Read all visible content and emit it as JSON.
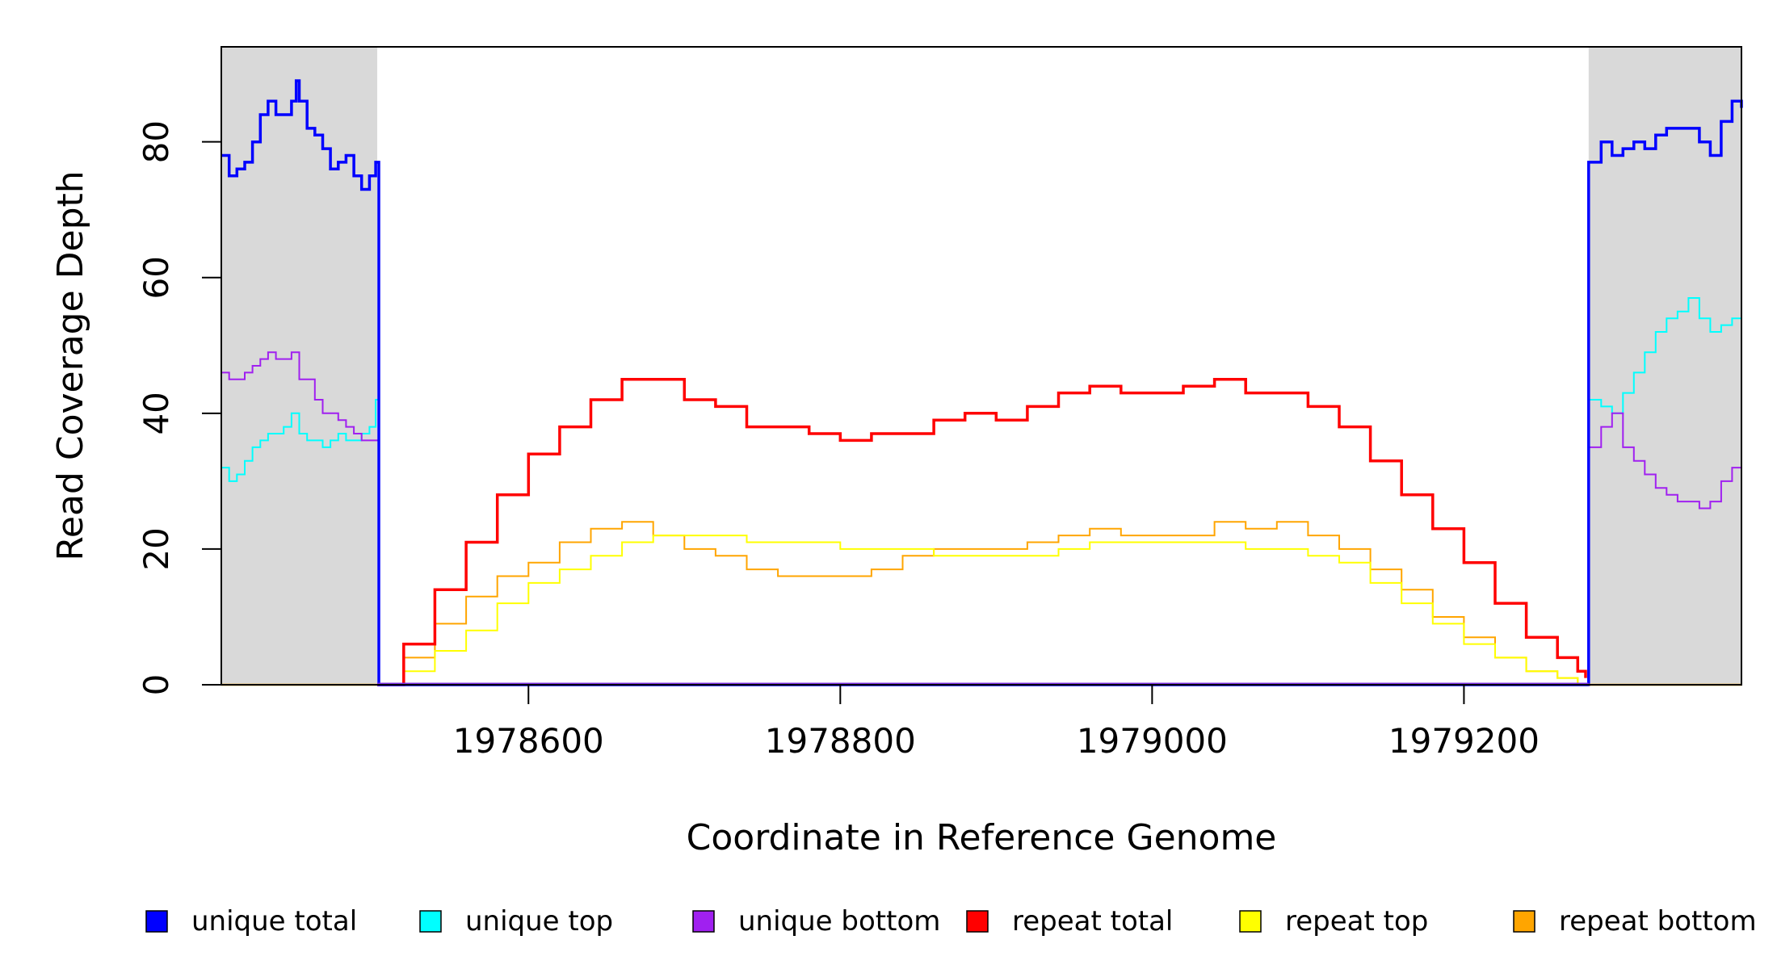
{
  "chart_data": {
    "type": "line",
    "title": "",
    "xlabel": "Coordinate in Reference Genome",
    "ylabel": "Read Coverage Depth",
    "xlim": [
      1978403,
      1979378
    ],
    "ylim": [
      0,
      94
    ],
    "x_ticks": [
      1978600,
      1978800,
      1979000,
      1979200
    ],
    "x_tick_labels": [
      "1978600",
      "1978800",
      "1979000",
      "1979200"
    ],
    "y_ticks": [
      0,
      20,
      40,
      60,
      80
    ],
    "y_tick_labels": [
      "0",
      "20",
      "40",
      "60",
      "80"
    ],
    "grid": false,
    "legend_position": "bottom",
    "shaded_regions": [
      {
        "from": 1978403,
        "to": 1978503,
        "color": "#d9d9d9"
      },
      {
        "from": 1979280,
        "to": 1979378,
        "color": "#d9d9d9"
      }
    ],
    "series": [
      {
        "name": "unique total",
        "color": "#0000ff",
        "x": [
          1978403,
          1978408,
          1978413,
          1978418,
          1978423,
          1978428,
          1978433,
          1978438,
          1978443,
          1978448,
          1978451,
          1978453,
          1978458,
          1978463,
          1978468,
          1978473,
          1978478,
          1978483,
          1978488,
          1978493,
          1978498,
          1978502,
          1978503,
          1978504,
          1979279,
          1979280,
          1979281,
          1979288,
          1979295,
          1979302,
          1979309,
          1979316,
          1979323,
          1979330,
          1979337,
          1979344,
          1979351,
          1979358,
          1979365,
          1979372,
          1979378
        ],
        "y": [
          78,
          75,
          76,
          77,
          80,
          84,
          86,
          84,
          84,
          86,
          89,
          86,
          82,
          81,
          79,
          76,
          77,
          78,
          75,
          73,
          75,
          77,
          77,
          0,
          0,
          77,
          77,
          80,
          78,
          79,
          80,
          79,
          81,
          82,
          82,
          82,
          80,
          78,
          83,
          86,
          85
        ]
      },
      {
        "name": "unique top",
        "color": "#00ffff",
        "x": [
          1978403,
          1978408,
          1978413,
          1978418,
          1978423,
          1978428,
          1978433,
          1978438,
          1978443,
          1978448,
          1978453,
          1978458,
          1978463,
          1978468,
          1978473,
          1978478,
          1978483,
          1978488,
          1978493,
          1978498,
          1978502,
          1978503,
          1978504,
          1979279,
          1979280,
          1979281,
          1979288,
          1979295,
          1979302,
          1979309,
          1979316,
          1979323,
          1979330,
          1979337,
          1979344,
          1979351,
          1979358,
          1979365,
          1979372,
          1979378
        ],
        "y": [
          32,
          30,
          31,
          33,
          35,
          36,
          37,
          37,
          38,
          40,
          37,
          36,
          36,
          35,
          36,
          37,
          36,
          36,
          37,
          38,
          42,
          42,
          0,
          0,
          42,
          42,
          41,
          40,
          43,
          46,
          49,
          52,
          54,
          55,
          57,
          54,
          52,
          53,
          54,
          52
        ]
      },
      {
        "name": "unique bottom",
        "color": "#a020f0",
        "x": [
          1978403,
          1978408,
          1978413,
          1978418,
          1978423,
          1978428,
          1978433,
          1978438,
          1978443,
          1978448,
          1978453,
          1978458,
          1978463,
          1978468,
          1978473,
          1978478,
          1978483,
          1978488,
          1978493,
          1978498,
          1978502,
          1978503,
          1978504,
          1979279,
          1979280,
          1979281,
          1979288,
          1979295,
          1979302,
          1979309,
          1979316,
          1979323,
          1979330,
          1979337,
          1979344,
          1979351,
          1979358,
          1979365,
          1979372,
          1979378
        ],
        "y": [
          46,
          45,
          45,
          46,
          47,
          48,
          49,
          48,
          48,
          49,
          45,
          45,
          42,
          40,
          40,
          39,
          38,
          37,
          36,
          36,
          36,
          36,
          0,
          0,
          35,
          35,
          38,
          40,
          35,
          33,
          31,
          29,
          28,
          27,
          27,
          26,
          27,
          30,
          32,
          33
        ]
      },
      {
        "name": "repeat total",
        "color": "#ff0000",
        "x": [
          1978503,
          1978520,
          1978540,
          1978560,
          1978580,
          1978600,
          1978620,
          1978640,
          1978660,
          1978680,
          1978700,
          1978720,
          1978740,
          1978760,
          1978780,
          1978800,
          1978820,
          1978840,
          1978860,
          1978880,
          1978900,
          1978920,
          1978940,
          1978960,
          1978980,
          1979000,
          1979020,
          1979040,
          1979060,
          1979080,
          1979100,
          1979120,
          1979140,
          1979160,
          1979180,
          1979200,
          1979220,
          1979240,
          1979260,
          1979273,
          1979278
        ],
        "y": [
          0,
          6,
          14,
          21,
          28,
          34,
          38,
          42,
          45,
          45,
          42,
          41,
          38,
          38,
          37,
          36,
          37,
          37,
          39,
          40,
          39,
          41,
          43,
          44,
          43,
          43,
          44,
          45,
          43,
          43,
          41,
          38,
          33,
          28,
          23,
          18,
          12,
          7,
          4,
          2,
          1
        ]
      },
      {
        "name": "repeat top",
        "color": "#ffff00",
        "x": [
          1978503,
          1978520,
          1978540,
          1978560,
          1978580,
          1978600,
          1978620,
          1978640,
          1978660,
          1978680,
          1978700,
          1978720,
          1978740,
          1978760,
          1978780,
          1978800,
          1978820,
          1978840,
          1978860,
          1978880,
          1978900,
          1978920,
          1978940,
          1978960,
          1978980,
          1979000,
          1979020,
          1979040,
          1979060,
          1979080,
          1979100,
          1979120,
          1979140,
          1979160,
          1979180,
          1979200,
          1979220,
          1979240,
          1979260,
          1979273,
          1979278
        ],
        "y": [
          0,
          2,
          5,
          8,
          12,
          15,
          17,
          19,
          21,
          22,
          22,
          22,
          21,
          21,
          21,
          20,
          20,
          20,
          19,
          19,
          19,
          19,
          20,
          21,
          21,
          21,
          21,
          21,
          20,
          20,
          19,
          18,
          15,
          12,
          9,
          6,
          4,
          2,
          1,
          0,
          0
        ]
      },
      {
        "name": "repeat bottom",
        "color": "#ffa500",
        "x": [
          1978503,
          1978520,
          1978540,
          1978560,
          1978580,
          1978600,
          1978620,
          1978640,
          1978660,
          1978680,
          1978700,
          1978720,
          1978740,
          1978760,
          1978780,
          1978800,
          1978820,
          1978840,
          1978860,
          1978880,
          1978900,
          1978920,
          1978940,
          1978960,
          1978980,
          1979000,
          1979020,
          1979040,
          1979060,
          1979080,
          1979100,
          1979120,
          1979140,
          1979160,
          1979180,
          1979200,
          1979220,
          1979240,
          1979260,
          1979273,
          1979278
        ],
        "y": [
          0,
          4,
          9,
          13,
          16,
          18,
          21,
          23,
          24,
          22,
          20,
          19,
          17,
          16,
          16,
          16,
          17,
          19,
          20,
          20,
          20,
          21,
          22,
          23,
          22,
          22,
          22,
          24,
          23,
          24,
          22,
          20,
          17,
          14,
          10,
          7,
          4,
          2,
          1,
          0,
          0
        ]
      }
    ]
  }
}
